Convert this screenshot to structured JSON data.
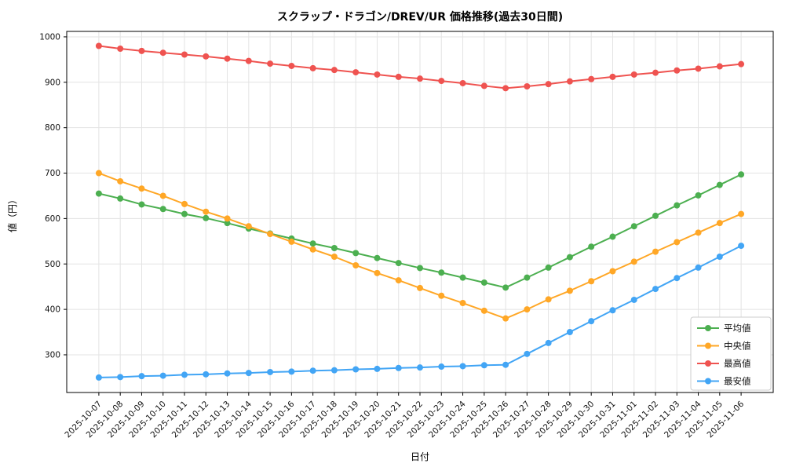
{
  "chart_data": {
    "type": "line",
    "title": "スクラップ・ドラゴン/DREV/UR 価格推移(過去30日間)",
    "xlabel": "日付",
    "ylabel": "値（円）",
    "ylim": [
      217,
      1012
    ],
    "yticks": [
      300,
      400,
      500,
      600,
      700,
      800,
      900,
      1000
    ],
    "grid": true,
    "legend_position": "lower right",
    "x": [
      "2025-10-07",
      "2025-10-08",
      "2025-10-09",
      "2025-10-10",
      "2025-10-11",
      "2025-10-12",
      "2025-10-13",
      "2025-10-14",
      "2025-10-15",
      "2025-10-16",
      "2025-10-17",
      "2025-10-18",
      "2025-10-19",
      "2025-10-20",
      "2025-10-21",
      "2025-10-22",
      "2025-10-23",
      "2025-10-24",
      "2025-10-25",
      "2025-10-26",
      "2025-10-27",
      "2025-10-28",
      "2025-10-29",
      "2025-10-30",
      "2025-10-31",
      "2025-11-01",
      "2025-11-02",
      "2025-11-03",
      "2025-11-04",
      "2025-11-05",
      "2025-11-06"
    ],
    "series": [
      {
        "id": "mean",
        "name": "平均値",
        "color": "#4caf50",
        "values": [
          655,
          644,
          631,
          621,
          610,
          601,
          590,
          578,
          567,
          556,
          545,
          535,
          524,
          513,
          502,
          491,
          481,
          470,
          459,
          448,
          470,
          492,
          515,
          538,
          560,
          583,
          606,
          629,
          651,
          674,
          697
        ]
      },
      {
        "id": "median",
        "name": "中央値",
        "color": "#ffa726",
        "values": [
          700,
          682,
          666,
          650,
          632,
          615,
          600,
          583,
          566,
          549,
          532,
          516,
          497,
          480,
          464,
          447,
          430,
          414,
          397,
          380,
          400,
          422,
          441,
          462,
          484,
          505,
          527,
          548,
          569,
          590,
          610
        ]
      },
      {
        "id": "max",
        "name": "最高値",
        "color": "#ef5350",
        "values": [
          980,
          974,
          969,
          965,
          961,
          957,
          952,
          947,
          941,
          936,
          931,
          927,
          922,
          917,
          912,
          908,
          903,
          898,
          892,
          887,
          891,
          896,
          902,
          907,
          912,
          917,
          921,
          926,
          930,
          935,
          940
        ]
      },
      {
        "id": "min",
        "name": "最安値",
        "color": "#42a5f5",
        "values": [
          250,
          251,
          253,
          254,
          256,
          257,
          259,
          260,
          262,
          263,
          265,
          266,
          268,
          269,
          271,
          272,
          274,
          275,
          277,
          278,
          302,
          326,
          350,
          374,
          398,
          421,
          445,
          469,
          492,
          516,
          540
        ]
      }
    ]
  }
}
